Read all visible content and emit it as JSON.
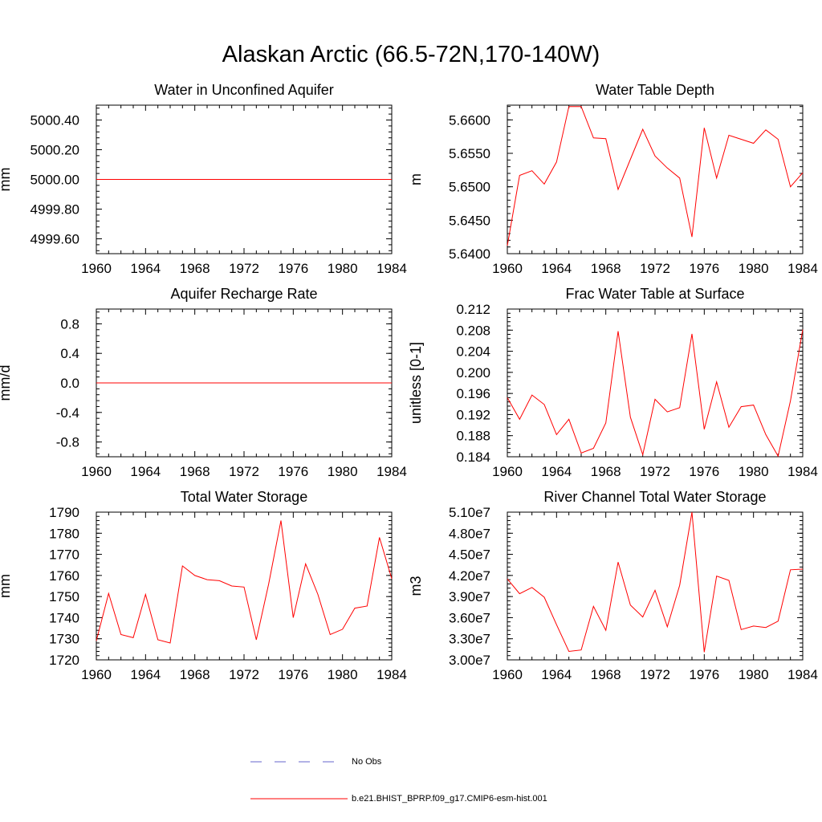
{
  "title": "Alaskan Arctic (66.5-72N,170-140W)",
  "legend": {
    "items": [
      {
        "label": "No Obs",
        "color": "#6666cc",
        "style": "dashed"
      },
      {
        "label": "b.e21.BHIST_BPRP.f09_g17.CMIP6-esm-hist.001",
        "color": "#ff0000",
        "style": "solid"
      }
    ]
  },
  "chart_data": [
    {
      "type": "line",
      "title": "Water in Unconfined Aquifer",
      "xlabel": "",
      "ylabel": "mm",
      "xlim": [
        1960,
        1984
      ],
      "ylim": [
        4999.5,
        5000.5
      ],
      "xticks": [
        "1960",
        "1964",
        "1968",
        "1972",
        "1976",
        "1980",
        "1984"
      ],
      "yticks": [
        {
          "value": 4999.6,
          "label": "4999.60"
        },
        {
          "value": 4999.8,
          "label": "4999.80"
        },
        {
          "value": 5000.0,
          "label": "5000.00"
        },
        {
          "value": 5000.2,
          "label": "5000.20"
        },
        {
          "value": 5000.4,
          "label": "5000.40"
        }
      ],
      "x": [
        1960,
        1961,
        1962,
        1963,
        1964,
        1965,
        1966,
        1967,
        1968,
        1969,
        1970,
        1971,
        1972,
        1973,
        1974,
        1975,
        1976,
        1977,
        1978,
        1979,
        1980,
        1981,
        1982,
        1983,
        1984
      ],
      "series": [
        {
          "name": "b.e21.BHIST_BPRP.f09_g17.CMIP6-esm-hist.001",
          "color": "#ff0000",
          "values": [
            5000,
            5000,
            5000,
            5000,
            5000,
            5000,
            5000,
            5000,
            5000,
            5000,
            5000,
            5000,
            5000,
            5000,
            5000,
            5000,
            5000,
            5000,
            5000,
            5000,
            5000,
            5000,
            5000,
            5000,
            5000
          ]
        }
      ]
    },
    {
      "type": "line",
      "title": "Water Table Depth",
      "xlabel": "",
      "ylabel": "m",
      "xlim": [
        1960,
        1984
      ],
      "ylim": [
        5.64,
        5.6622
      ],
      "xticks": [
        "1960",
        "1964",
        "1968",
        "1972",
        "1976",
        "1980",
        "1984"
      ],
      "yticks": [
        {
          "value": 5.64,
          "label": "5.6400"
        },
        {
          "value": 5.645,
          "label": "5.6450"
        },
        {
          "value": 5.65,
          "label": "5.6500"
        },
        {
          "value": 5.655,
          "label": "5.6550"
        },
        {
          "value": 5.66,
          "label": "5.6600"
        }
      ],
      "x": [
        1960,
        1961,
        1962,
        1963,
        1964,
        1965,
        1966,
        1967,
        1968,
        1969,
        1970,
        1971,
        1972,
        1973,
        1974,
        1975,
        1976,
        1977,
        1978,
        1979,
        1980,
        1981,
        1982,
        1983,
        1984
      ],
      "series": [
        {
          "name": "b.e21.BHIST_BPRP.f09_g17.CMIP6-esm-hist.001",
          "color": "#ff0000",
          "values": [
            5.6412,
            5.6517,
            5.6524,
            5.6504,
            5.6537,
            5.662,
            5.662,
            5.6573,
            5.6572,
            5.6496,
            5.6541,
            5.6586,
            5.6546,
            5.6528,
            5.6513,
            5.6425,
            5.6588,
            5.6513,
            5.6577,
            5.6571,
            5.6565,
            5.6585,
            5.6571,
            5.65,
            5.6521
          ]
        }
      ]
    },
    {
      "type": "line",
      "title": "Aquifer Recharge Rate",
      "xlabel": "",
      "ylabel": "mm/d",
      "xlim": [
        1960,
        1984
      ],
      "ylim": [
        -1,
        1
      ],
      "xticks": [
        "1960",
        "1964",
        "1968",
        "1972",
        "1976",
        "1980",
        "1984"
      ],
      "yticks": [
        {
          "value": -0.8,
          "label": "-0.8"
        },
        {
          "value": -0.4,
          "label": "-0.4"
        },
        {
          "value": 0.0,
          "label": "0.0"
        },
        {
          "value": 0.4,
          "label": "0.4"
        },
        {
          "value": 0.8,
          "label": "0.8"
        }
      ],
      "x": [
        1960,
        1961,
        1962,
        1963,
        1964,
        1965,
        1966,
        1967,
        1968,
        1969,
        1970,
        1971,
        1972,
        1973,
        1974,
        1975,
        1976,
        1977,
        1978,
        1979,
        1980,
        1981,
        1982,
        1983,
        1984
      ],
      "series": [
        {
          "name": "b.e21.BHIST_BPRP.f09_g17.CMIP6-esm-hist.001",
          "color": "#ff0000",
          "values": [
            0,
            0,
            0,
            0,
            0,
            0,
            0,
            0,
            0,
            0,
            0,
            0,
            0,
            0,
            0,
            0,
            0,
            0,
            0,
            0,
            0,
            0,
            0,
            0,
            0
          ]
        }
      ]
    },
    {
      "type": "line",
      "title": "Frac Water Table at Surface",
      "xlabel": "",
      "ylabel": "unitless [0-1]",
      "xlim": [
        1960,
        1984
      ],
      "ylim": [
        0.184,
        0.212
      ],
      "xticks": [
        "1960",
        "1964",
        "1968",
        "1972",
        "1976",
        "1980",
        "1984"
      ],
      "yticks": [
        {
          "value": 0.184,
          "label": "0.184"
        },
        {
          "value": 0.188,
          "label": "0.188"
        },
        {
          "value": 0.192,
          "label": "0.192"
        },
        {
          "value": 0.196,
          "label": "0.196"
        },
        {
          "value": 0.2,
          "label": "0.200"
        },
        {
          "value": 0.204,
          "label": "0.204"
        },
        {
          "value": 0.208,
          "label": "0.208"
        },
        {
          "value": 0.212,
          "label": "0.212"
        }
      ],
      "x": [
        1960,
        1961,
        1962,
        1963,
        1964,
        1965,
        1966,
        1967,
        1968,
        1969,
        1970,
        1971,
        1972,
        1973,
        1974,
        1975,
        1976,
        1977,
        1978,
        1979,
        1980,
        1981,
        1982,
        1983,
        1984
      ],
      "series": [
        {
          "name": "b.e21.BHIST_BPRP.f09_g17.CMIP6-esm-hist.001",
          "color": "#ff0000",
          "values": [
            0.1952,
            0.1911,
            0.1957,
            0.1939,
            0.1882,
            0.1911,
            0.1847,
            0.1856,
            0.1904,
            0.2078,
            0.1915,
            0.1844,
            0.1949,
            0.1925,
            0.1933,
            0.2073,
            0.1892,
            0.1982,
            0.1896,
            0.1935,
            0.1938,
            0.1882,
            0.1841,
            0.1946,
            0.2081
          ]
        }
      ]
    },
    {
      "type": "line",
      "title": "Total Water Storage",
      "xlabel": "",
      "ylabel": "mm",
      "xlim": [
        1960,
        1984
      ],
      "ylim": [
        1720,
        1790
      ],
      "xticks": [
        "1960",
        "1964",
        "1968",
        "1972",
        "1976",
        "1980",
        "1984"
      ],
      "yticks": [
        {
          "value": 1720,
          "label": "1720"
        },
        {
          "value": 1730,
          "label": "1730"
        },
        {
          "value": 1740,
          "label": "1740"
        },
        {
          "value": 1750,
          "label": "1750"
        },
        {
          "value": 1760,
          "label": "1760"
        },
        {
          "value": 1770,
          "label": "1770"
        },
        {
          "value": 1780,
          "label": "1780"
        },
        {
          "value": 1790,
          "label": "1790"
        }
      ],
      "x": [
        1960,
        1961,
        1962,
        1963,
        1964,
        1965,
        1966,
        1967,
        1968,
        1969,
        1970,
        1971,
        1972,
        1973,
        1974,
        1975,
        1976,
        1977,
        1978,
        1979,
        1980,
        1981,
        1982,
        1983,
        1984
      ],
      "series": [
        {
          "name": "b.e21.BHIST_BPRP.f09_g17.CMIP6-esm-hist.001",
          "color": "#ff0000",
          "values": [
            1729,
            1751.5,
            1732,
            1730.5,
            1751,
            1729.5,
            1728,
            1764.5,
            1760,
            1758,
            1757.5,
            1755,
            1754.5,
            1729.5,
            1756,
            1786,
            1740,
            1765.5,
            1751,
            1732,
            1734.5,
            1744.5,
            1745.5,
            1778,
            1758.5
          ]
        }
      ]
    },
    {
      "type": "line",
      "title": "River Channel Total Water Storage",
      "xlabel": "",
      "ylabel": "m3",
      "xlim": [
        1960,
        1984
      ],
      "ylim": [
        30000000,
        51000000
      ],
      "xticks": [
        "1960",
        "1964",
        "1968",
        "1972",
        "1976",
        "1980",
        "1984"
      ],
      "yticks": [
        {
          "value": 30000000,
          "label": "3.00e7"
        },
        {
          "value": 33000000,
          "label": "3.30e7"
        },
        {
          "value": 36000000,
          "label": "3.60e7"
        },
        {
          "value": 39000000,
          "label": "3.90e7"
        },
        {
          "value": 42000000,
          "label": "4.20e7"
        },
        {
          "value": 45000000,
          "label": "4.50e7"
        },
        {
          "value": 48000000,
          "label": "4.80e7"
        },
        {
          "value": 51000000,
          "label": "5.10e7"
        }
      ],
      "x": [
        1960,
        1961,
        1962,
        1963,
        1964,
        1965,
        1966,
        1967,
        1968,
        1969,
        1970,
        1971,
        1972,
        1973,
        1974,
        1975,
        1976,
        1977,
        1978,
        1979,
        1980,
        1981,
        1982,
        1983,
        1984
      ],
      "series": [
        {
          "name": "b.e21.BHIST_BPRP.f09_g17.CMIP6-esm-hist.001",
          "color": "#ff0000",
          "values": [
            41500000,
            39400000,
            40300000,
            38900000,
            35000000,
            31200000,
            31400000,
            37600000,
            34200000,
            43900000,
            37800000,
            36100000,
            39900000,
            34700000,
            40600000,
            51000000,
            31100000,
            41900000,
            41300000,
            34300000,
            34800000,
            34600000,
            35500000,
            42800000,
            42900000
          ]
        }
      ]
    }
  ]
}
